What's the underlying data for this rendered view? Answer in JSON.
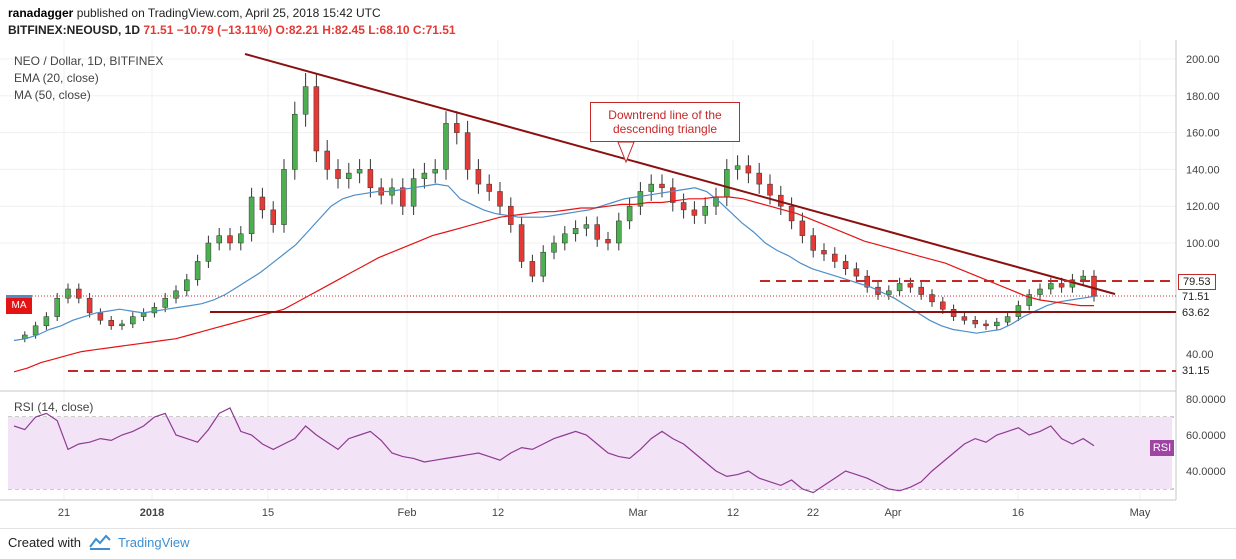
{
  "header": {
    "author": "ranadagger",
    "published_text": "published on TradingView.com, April 25, 2018 15:42 UTC",
    "symbol": "BITFINEX:NEOUSD, 1D",
    "price": "71.51",
    "change": "−10.79 (−13.11%)",
    "ohlc": "O:82.21 H:82.45 L:68.10 C:71.51"
  },
  "legend": {
    "title": "NEO / Dollar, 1D, BITFINEX",
    "ema": "EMA (20, close)",
    "ma": "MA (50, close)",
    "rsi": "RSI (14, close)"
  },
  "footer": {
    "created_with": "Created with",
    "brand": "TradingView"
  },
  "annotation": {
    "text_line1": "Downtrend line of the",
    "text_line2": "descending triangle"
  },
  "chart_data": {
    "type": "line",
    "x_ticks": [
      "21",
      "2018",
      "15",
      "Feb",
      "12",
      "Mar",
      "12",
      "22",
      "Apr",
      "16",
      "May"
    ],
    "y_ticks_price": [
      "200.00",
      "180.00",
      "160.00",
      "140.00",
      "120.00",
      "100.00",
      "40.00"
    ],
    "y_ticks_rsi": [
      "80.0000",
      "60.0000",
      "40.0000"
    ],
    "price_labels": {
      "resistance": "79.53",
      "last": "71.51",
      "support": "63.62",
      "lower_support": "31.15"
    },
    "indicator_tags": {
      "ma": "MA",
      "rsi": "RSI"
    },
    "levels": {
      "resistance": 79.53,
      "last": 71.51,
      "support": 63.62,
      "lower_support": 31.15
    },
    "colors": {
      "up": "#4caf50",
      "down": "#e53935",
      "ema": "#4d8ec9",
      "ma": "#e41414",
      "trendline": "#8b1010",
      "rsi": "#8e3b92",
      "rsi_band": "#f3e3f6"
    },
    "ema_series": [
      47,
      48,
      50,
      53,
      55,
      58,
      60,
      62,
      63,
      64,
      63,
      62,
      63,
      64,
      65,
      66,
      67,
      69,
      72,
      76,
      80,
      84,
      89,
      94,
      99,
      106,
      113,
      120,
      124,
      126,
      127,
      128,
      128,
      129,
      130,
      131,
      132,
      131,
      124,
      121,
      118,
      116,
      115,
      114,
      114,
      114,
      115,
      116,
      117,
      118,
      120,
      122,
      124,
      125,
      126,
      127,
      128,
      129,
      130,
      128,
      123,
      117,
      111,
      106,
      100,
      96,
      93,
      89,
      86,
      84,
      82,
      80,
      78,
      76,
      73,
      70,
      66,
      62,
      58,
      55,
      53,
      52,
      51,
      52,
      53,
      56,
      60,
      63,
      66,
      68,
      69,
      70,
      71
    ],
    "ma_series": [
      30,
      32,
      35,
      37,
      39,
      41,
      42,
      43,
      44,
      45,
      46,
      47,
      48,
      50,
      52,
      54,
      56,
      58,
      60,
      62,
      64,
      68,
      72,
      76,
      80,
      84,
      88,
      92,
      95,
      98,
      101,
      104,
      106,
      108,
      110,
      112,
      114,
      115,
      116,
      117,
      117,
      118,
      119,
      119,
      120,
      121,
      121,
      122,
      122,
      123,
      124,
      124,
      125,
      125,
      124,
      122,
      120,
      118,
      116,
      113,
      110,
      107,
      104,
      101,
      99,
      97,
      95,
      93,
      91,
      89,
      86,
      83,
      80,
      77,
      74,
      71,
      69,
      68,
      67,
      66,
      66
    ]
  }
}
